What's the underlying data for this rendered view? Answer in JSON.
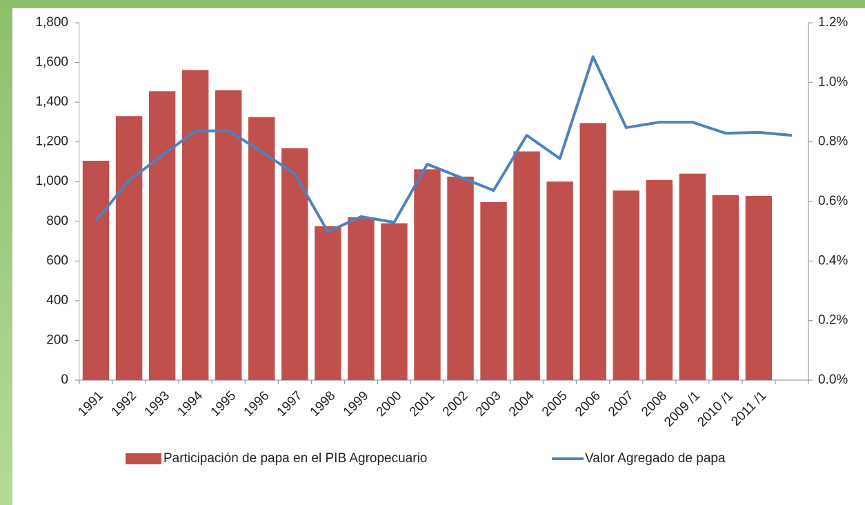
{
  "chart_data": {
    "type": "bar_line",
    "categories": [
      "1991",
      "1992",
      "1993",
      "1994",
      "1995",
      "1996",
      "1997",
      "1998",
      "1999",
      "2000",
      "2001",
      "2002",
      "2003",
      "2004",
      "2005",
      "2006",
      "2007",
      "2008",
      "2009 /1",
      "2010 /1",
      "2011 /1",
      null
    ],
    "series": [
      {
        "name": "Participación de papa en el PIB Agropecuario",
        "type": "bar",
        "color": "#c0504d",
        "axis": "y",
        "values": [
          1105,
          1330,
          1455,
          1562,
          1460,
          1325,
          1168,
          775,
          820,
          790,
          1062,
          1025,
          897,
          1152,
          1000,
          1295,
          955,
          1008,
          1040,
          932,
          928,
          null
        ]
      },
      {
        "name": "Valor Agregado de papa",
        "type": "line",
        "color": "#4f81bd",
        "axis": "y2",
        "values": [
          0.535,
          0.67,
          0.755,
          0.836,
          0.838,
          0.767,
          0.693,
          0.498,
          0.549,
          0.53,
          0.725,
          0.681,
          0.637,
          0.822,
          0.744,
          1.086,
          0.848,
          0.866,
          0.866,
          0.829,
          0.832,
          0.822
        ]
      }
    ],
    "ylim": [
      0,
      1800
    ],
    "yticks": [
      0,
      200,
      400,
      600,
      800,
      {
        "value": 1000,
        "label": "1,000"
      },
      {
        "value": 1200,
        "label": "1,200"
      },
      {
        "value": 1400,
        "label": "1,400"
      },
      {
        "value": 1600,
        "label": "1,600"
      },
      {
        "value": 1800,
        "label": "1,800"
      }
    ],
    "y2lim": [
      0,
      1.2
    ],
    "y2ticks": [
      {
        "value": 0,
        "label": "0.0%"
      },
      {
        "value": 0.2,
        "label": "0.2%"
      },
      {
        "value": 0.4,
        "label": "0.4%"
      },
      {
        "value": 0.6,
        "label": "0.6%"
      },
      {
        "value": 0.8,
        "label": "0.8%"
      },
      {
        "value": 1.0,
        "label": "1.0%"
      },
      {
        "value": 1.2,
        "label": "1.2%"
      }
    ],
    "grid": false,
    "legend": "bottom"
  }
}
